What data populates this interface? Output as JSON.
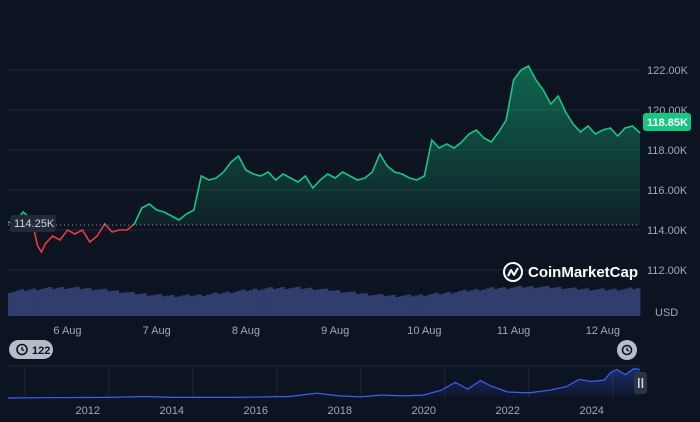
{
  "chart_data": {
    "type": "area",
    "currency": "USD",
    "y_ticks": [
      "112.00K",
      "114.00K",
      "116.00K",
      "118.00K",
      "120.00K",
      "122.00K"
    ],
    "y_tick_values": [
      112000,
      114000,
      116000,
      118000,
      120000,
      122000
    ],
    "ylim": [
      110500,
      124000
    ],
    "x_ticks": [
      "6 Aug",
      "7 Aug",
      "8 Aug",
      "9 Aug",
      "10 Aug",
      "11 Aug",
      "12 Aug"
    ],
    "x_tick_values": [
      "2025-08-06",
      "2025-08-07",
      "2025-08-08",
      "2025-08-09",
      "2025-08-10",
      "2025-08-11",
      "2025-08-12"
    ],
    "x_range": [
      "2025-08-05T08:00",
      "2025-08-12T10:00"
    ],
    "reference_price": 114250,
    "reference_label": "114.25K",
    "current_price": 118850,
    "current_label": "118.85K",
    "series": [
      {
        "points": [
          [
            "2025-08-05T08:00",
            114400
          ],
          [
            "2025-08-05T10:00",
            114300
          ],
          [
            "2025-08-05T12:00",
            114900
          ],
          [
            "2025-08-05T14:00",
            114600
          ],
          [
            "2025-08-05T15:00",
            114000
          ],
          [
            "2025-08-05T16:00",
            113200
          ],
          [
            "2025-08-05T17:00",
            112900
          ],
          [
            "2025-08-05T18:00",
            113300
          ],
          [
            "2025-08-05T20:00",
            113700
          ],
          [
            "2025-08-05T22:00",
            113500
          ],
          [
            "2025-08-06T00:00",
            114000
          ],
          [
            "2025-08-06T02:00",
            113800
          ],
          [
            "2025-08-06T04:00",
            114000
          ],
          [
            "2025-08-06T06:00",
            113400
          ],
          [
            "2025-08-06T08:00",
            113700
          ],
          [
            "2025-08-06T10:00",
            114300
          ],
          [
            "2025-08-06T12:00",
            113900
          ],
          [
            "2025-08-06T14:00",
            114000
          ],
          [
            "2025-08-06T16:00",
            114000
          ],
          [
            "2025-08-06T18:00",
            114300
          ],
          [
            "2025-08-06T20:00",
            115100
          ],
          [
            "2025-08-06T22:00",
            115300
          ],
          [
            "2025-08-07T00:00",
            115000
          ],
          [
            "2025-08-07T02:00",
            114900
          ],
          [
            "2025-08-07T04:00",
            114700
          ],
          [
            "2025-08-07T06:00",
            114500
          ],
          [
            "2025-08-07T08:00",
            114800
          ],
          [
            "2025-08-07T10:00",
            115000
          ],
          [
            "2025-08-07T12:00",
            116700
          ],
          [
            "2025-08-07T14:00",
            116500
          ],
          [
            "2025-08-07T16:00",
            116600
          ],
          [
            "2025-08-07T18:00",
            116900
          ],
          [
            "2025-08-07T20:00",
            117400
          ],
          [
            "2025-08-07T22:00",
            117700
          ],
          [
            "2025-08-08T00:00",
            117000
          ],
          [
            "2025-08-08T02:00",
            116800
          ],
          [
            "2025-08-08T04:00",
            116700
          ],
          [
            "2025-08-08T06:00",
            116900
          ],
          [
            "2025-08-08T08:00",
            116500
          ],
          [
            "2025-08-08T10:00",
            116800
          ],
          [
            "2025-08-08T12:00",
            116600
          ],
          [
            "2025-08-08T14:00",
            116400
          ],
          [
            "2025-08-08T16:00",
            116700
          ],
          [
            "2025-08-08T18:00",
            116100
          ],
          [
            "2025-08-08T20:00",
            116500
          ],
          [
            "2025-08-08T22:00",
            116800
          ],
          [
            "2025-08-09T00:00",
            116600
          ],
          [
            "2025-08-09T02:00",
            116900
          ],
          [
            "2025-08-09T04:00",
            116700
          ],
          [
            "2025-08-09T06:00",
            116500
          ],
          [
            "2025-08-09T08:00",
            116600
          ],
          [
            "2025-08-09T10:00",
            116900
          ],
          [
            "2025-08-09T12:00",
            117800
          ],
          [
            "2025-08-09T14:00",
            117200
          ],
          [
            "2025-08-09T16:00",
            116900
          ],
          [
            "2025-08-09T18:00",
            116800
          ],
          [
            "2025-08-09T20:00",
            116600
          ],
          [
            "2025-08-09T22:00",
            116500
          ],
          [
            "2025-08-10T00:00",
            116700
          ],
          [
            "2025-08-10T02:00",
            118500
          ],
          [
            "2025-08-10T04:00",
            118100
          ],
          [
            "2025-08-10T06:00",
            118300
          ],
          [
            "2025-08-10T08:00",
            118100
          ],
          [
            "2025-08-10T10:00",
            118400
          ],
          [
            "2025-08-10T12:00",
            118800
          ],
          [
            "2025-08-10T14:00",
            119000
          ],
          [
            "2025-08-10T16:00",
            118600
          ],
          [
            "2025-08-10T18:00",
            118400
          ],
          [
            "2025-08-10T20:00",
            118900
          ],
          [
            "2025-08-10T22:00",
            119500
          ],
          [
            "2025-08-11T00:00",
            121500
          ],
          [
            "2025-08-11T02:00",
            122000
          ],
          [
            "2025-08-11T04:00",
            122200
          ],
          [
            "2025-08-11T06:00",
            121500
          ],
          [
            "2025-08-11T08:00",
            121000
          ],
          [
            "2025-08-11T10:00",
            120300
          ],
          [
            "2025-08-11T12:00",
            120700
          ],
          [
            "2025-08-11T14:00",
            119900
          ],
          [
            "2025-08-11T16:00",
            119300
          ],
          [
            "2025-08-11T18:00",
            118900
          ],
          [
            "2025-08-11T20:00",
            119200
          ],
          [
            "2025-08-11T22:00",
            118800
          ],
          [
            "2025-08-12T00:00",
            119000
          ],
          [
            "2025-08-12T02:00",
            119100
          ],
          [
            "2025-08-12T04:00",
            118700
          ],
          [
            "2025-08-12T06:00",
            119100
          ],
          [
            "2025-08-12T08:00",
            119200
          ],
          [
            "2025-08-12T10:00",
            118850
          ]
        ]
      }
    ],
    "overview": {
      "x_ticks": [
        "2012",
        "2014",
        "2016",
        "2018",
        "2020",
        "2022",
        "2024"
      ],
      "x_tick_values": [
        2012,
        2014,
        2016,
        2018,
        2020,
        2022,
        2024
      ],
      "x_range": [
        2010.6,
        2025.65
      ],
      "values": [
        [
          2010.6,
          0
        ],
        [
          2011.5,
          0.01
        ],
        [
          2013.0,
          0.02
        ],
        [
          2013.9,
          0.05
        ],
        [
          2014.5,
          0.02
        ],
        [
          2016.0,
          0.02
        ],
        [
          2017.3,
          0.05
        ],
        [
          2017.95,
          0.16
        ],
        [
          2018.5,
          0.07
        ],
        [
          2019.0,
          0.04
        ],
        [
          2019.5,
          0.1
        ],
        [
          2020.0,
          0.07
        ],
        [
          2020.5,
          0.1
        ],
        [
          2020.9,
          0.25
        ],
        [
          2021.25,
          0.52
        ],
        [
          2021.55,
          0.3
        ],
        [
          2021.85,
          0.58
        ],
        [
          2022.1,
          0.4
        ],
        [
          2022.5,
          0.2
        ],
        [
          2023.0,
          0.17
        ],
        [
          2023.5,
          0.26
        ],
        [
          2023.9,
          0.38
        ],
        [
          2024.2,
          0.62
        ],
        [
          2024.5,
          0.55
        ],
        [
          2024.8,
          0.6
        ],
        [
          2024.95,
          0.85
        ],
        [
          2025.1,
          0.95
        ],
        [
          2025.3,
          0.78
        ],
        [
          2025.5,
          0.98
        ],
        [
          2025.65,
          0.95
        ]
      ]
    }
  },
  "colors": {
    "background": "#0d1421",
    "up": "#16c784",
    "down": "#ea3943",
    "volume": "#3b4a86",
    "overview_line": "#3861fb",
    "grid": "#1e2637",
    "badge_up": "#16c784",
    "badge_ref": "#222a3a"
  },
  "controls": {
    "comments_count": "122",
    "comments_icon": "history-icon",
    "reset_icon": "history-icon",
    "handle_icon": "pause-icon"
  },
  "branding": {
    "name": "CoinMarketCap",
    "logo_icon": "coinmarketcap-logo-icon"
  }
}
